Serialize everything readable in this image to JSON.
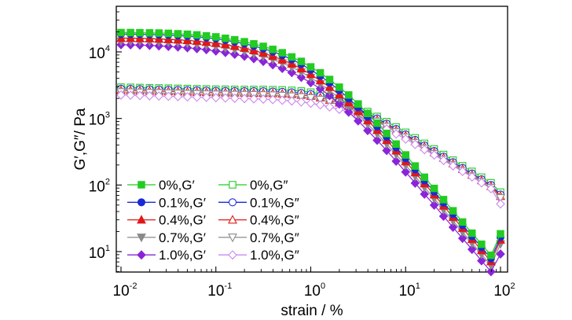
{
  "chart_data": {
    "type": "line",
    "xscale": "log",
    "yscale": "log",
    "xlim": [
      0.007,
      120
    ],
    "ylim": [
      5,
      40000
    ],
    "grid": false,
    "legend_position": "bottom-left",
    "legend_columns": 2,
    "xlabel": "strain / %",
    "ylabel": "G′,G″/ Pa",
    "x_ticks": [
      {
        "value": 0.01,
        "base": "10",
        "exp": "-2"
      },
      {
        "value": 0.1,
        "base": "10",
        "exp": "-1"
      },
      {
        "value": 1,
        "base": "10",
        "exp": "0"
      },
      {
        "value": 10,
        "base": "10",
        "exp": "1"
      },
      {
        "value": 100,
        "base": "10",
        "exp": "2"
      }
    ],
    "y_ticks": [
      {
        "value": 10,
        "base": "10",
        "exp": "1"
      },
      {
        "value": 100,
        "base": "10",
        "exp": "2"
      },
      {
        "value": 1000,
        "base": "10",
        "exp": "3"
      },
      {
        "value": 10000,
        "base": "10",
        "exp": "4"
      }
    ],
    "x": [
      0.01,
      0.0126,
      0.0158,
      0.02,
      0.0251,
      0.0316,
      0.0398,
      0.0501,
      0.0631,
      0.0794,
      0.1,
      0.126,
      0.158,
      0.2,
      0.251,
      0.316,
      0.398,
      0.501,
      0.631,
      0.794,
      1.0,
      1.26,
      1.58,
      2.0,
      2.51,
      3.16,
      3.98,
      5.01,
      6.31,
      7.94,
      10.0,
      12.6,
      15.8,
      20.0,
      25.1,
      31.6,
      39.8,
      50.1,
      63.1,
      79.4,
      100.0
    ],
    "series": [
      {
        "name": "0%,G′",
        "color": "#22cc22",
        "marker": "square",
        "filled": true,
        "values": [
          19500,
          19500,
          19400,
          19300,
          19200,
          19000,
          18700,
          18400,
          18000,
          17400,
          16800,
          16000,
          15200,
          14200,
          13200,
          12100,
          10900,
          9700,
          8400,
          7200,
          5950,
          4850,
          3850,
          2950,
          2250,
          1650,
          1190,
          850,
          595,
          412,
          283,
          193,
          131,
          89,
          60.4,
          41,
          27.8,
          18.9,
          12.9,
          8.8,
          18.5
        ]
      },
      {
        "name": "0.1%,G′",
        "color": "#1a2ad6",
        "marker": "circle",
        "filled": true,
        "values": [
          18500,
          18500,
          18400,
          18300,
          18100,
          17900,
          17600,
          17300,
          16900,
          16400,
          15800,
          15000,
          14200,
          13300,
          12300,
          11200,
          10100,
          8900,
          7700,
          6550,
          5400,
          4350,
          3450,
          2650,
          2000,
          1470,
          1060,
          755,
          530,
          367,
          252,
          172,
          117,
          79.5,
          54,
          36.7,
          25,
          17,
          11.6,
          7.9,
          16.5
        ]
      },
      {
        "name": "0.4%,G′",
        "color": "#e01818",
        "marker": "triangle-up",
        "filled": true,
        "values": [
          16000,
          16000,
          15900,
          15800,
          15600,
          15400,
          15200,
          14900,
          14500,
          14000,
          13500,
          12900,
          12200,
          11400,
          10500,
          9600,
          8600,
          7600,
          6600,
          5600,
          4600,
          3700,
          2950,
          2280,
          1730,
          1280,
          930,
          665,
          470,
          327,
          225,
          154,
          105,
          71.5,
          48.6,
          33,
          22.5,
          15.3,
          10.4,
          7.1,
          15
        ]
      },
      {
        "name": "0.7%,G′",
        "color": "#8a8a8a",
        "marker": "triangle-down",
        "filled": true,
        "values": [
          14500,
          14500,
          14400,
          14300,
          14100,
          13900,
          13700,
          13400,
          13000,
          12600,
          12100,
          11500,
          10900,
          10200,
          9400,
          8600,
          7700,
          6800,
          5900,
          5000,
          4100,
          3300,
          2620,
          2030,
          1540,
          1140,
          825,
          590,
          415,
          288,
          198,
          135,
          92,
          62.5,
          42.5,
          28.9,
          19.7,
          13.4,
          9.1,
          6.2,
          13
        ]
      },
      {
        "name": "1.0%,G′",
        "color": "#8a24d8",
        "marker": "diamond",
        "filled": true,
        "values": [
          12800,
          12750,
          12650,
          12500,
          12300,
          12100,
          11850,
          11550,
          11200,
          10800,
          10300,
          9800,
          9200,
          8600,
          7900,
          7200,
          6400,
          5650,
          4900,
          4150,
          3450,
          2800,
          2200,
          1650,
          1250,
          920,
          660,
          470,
          330,
          228,
          157,
          107,
          73,
          50,
          34,
          23.2,
          15.8,
          10.8,
          7.3,
          5.0,
          9.2
        ]
      },
      {
        "name": "0%,G″",
        "color": "#22cc22",
        "marker": "square",
        "filled": false,
        "values": [
          2950,
          2930,
          2910,
          2890,
          2870,
          2850,
          2830,
          2810,
          2790,
          2770,
          2750,
          2740,
          2730,
          2720,
          2720,
          2720,
          2700,
          2680,
          2640,
          2580,
          2480,
          2340,
          2160,
          1950,
          1720,
          1490,
          1270,
          1070,
          895,
          745,
          618,
          511,
          422,
          348,
          287,
          236,
          194,
          160,
          131,
          108,
          78
        ]
      },
      {
        "name": "0.1%,G″",
        "color": "#1a2ad6",
        "marker": "circle",
        "filled": false,
        "values": [
          2800,
          2780,
          2760,
          2740,
          2720,
          2700,
          2680,
          2660,
          2640,
          2620,
          2600,
          2590,
          2580,
          2570,
          2570,
          2560,
          2540,
          2510,
          2470,
          2410,
          2320,
          2190,
          2020,
          1830,
          1620,
          1400,
          1190,
          1000,
          835,
          695,
          576,
          476,
          393,
          324,
          267,
          220,
          181,
          149,
          122,
          100,
          72
        ]
      },
      {
        "name": "0.4%,G″",
        "color": "#e01818",
        "marker": "triangle-up",
        "filled": false,
        "values": [
          2650,
          2630,
          2610,
          2590,
          2570,
          2550,
          2530,
          2510,
          2490,
          2470,
          2450,
          2440,
          2430,
          2420,
          2410,
          2400,
          2380,
          2350,
          2310,
          2250,
          2170,
          2050,
          1900,
          1720,
          1530,
          1330,
          1130,
          950,
          795,
          662,
          549,
          454,
          375,
          309,
          255,
          210,
          173,
          142,
          117,
          96,
          68
        ]
      },
      {
        "name": "0.7%,G″",
        "color": "#8a8a8a",
        "marker": "triangle-down",
        "filled": false,
        "values": [
          2500,
          2480,
          2460,
          2440,
          2420,
          2400,
          2380,
          2360,
          2340,
          2320,
          2300,
          2290,
          2280,
          2270,
          2260,
          2250,
          2230,
          2200,
          2160,
          2100,
          2030,
          1920,
          1780,
          1620,
          1440,
          1250,
          1070,
          900,
          752,
          626,
          520,
          430,
          355,
          293,
          242,
          199,
          164,
          135,
          111,
          91,
          64
        ]
      },
      {
        "name": "1.0%,G″",
        "color": "#cc88ee",
        "marker": "diamond",
        "filled": false,
        "values": [
          2250,
          2230,
          2210,
          2190,
          2170,
          2150,
          2130,
          2110,
          2090,
          2070,
          2050,
          2030,
          2010,
          1990,
          1970,
          1950,
          1920,
          1880,
          1830,
          1770,
          1690,
          1600,
          1490,
          1370,
          1240,
          1100,
          960,
          820,
          695,
          585,
          490,
          408,
          340,
          282,
          234,
          194,
          160,
          132,
          108,
          88,
          52
        ]
      }
    ]
  }
}
